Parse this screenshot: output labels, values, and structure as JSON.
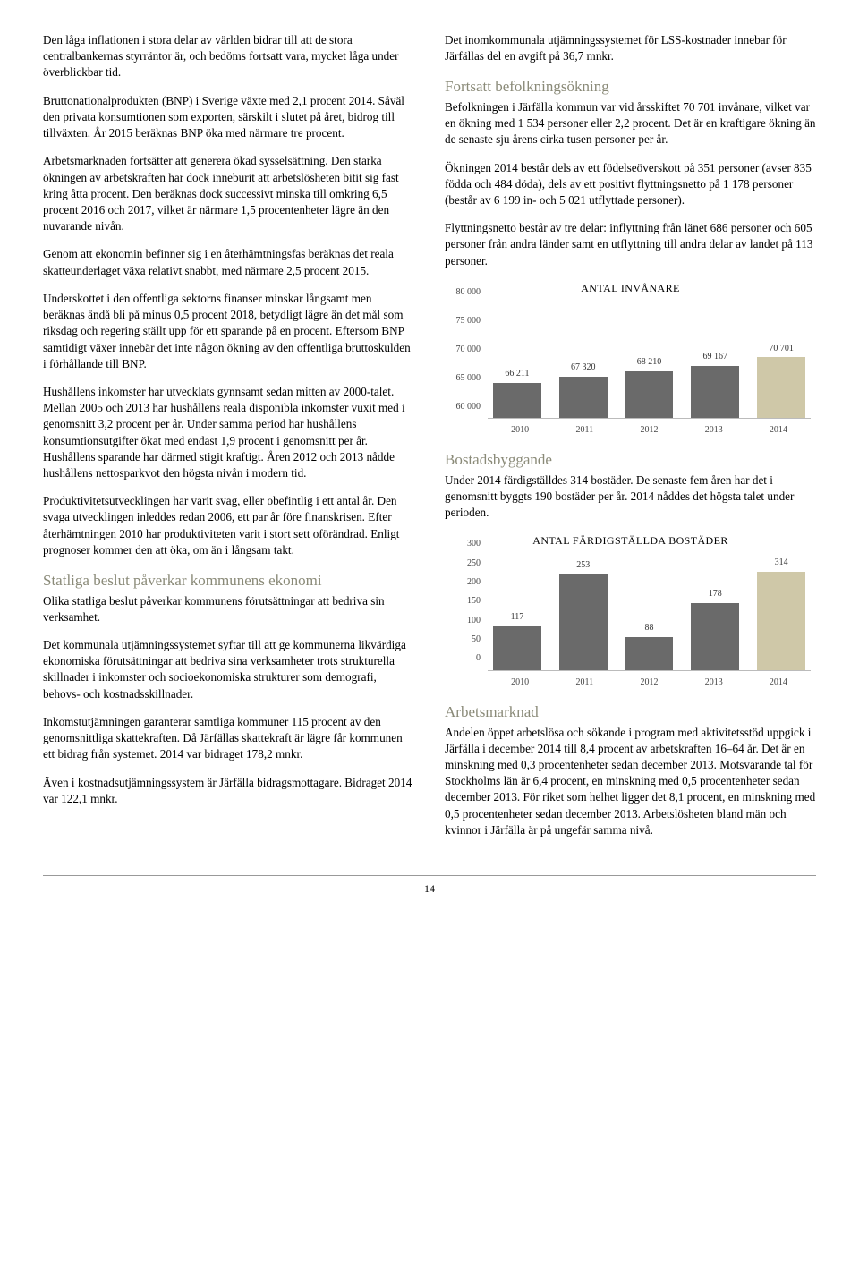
{
  "left": {
    "p1": "Den låga inflationen i stora delar av världen bidrar till att de stora centralbankernas styrräntor är, och bedöms fortsatt vara, mycket låga under överblickbar tid.",
    "p2": "Bruttonationalprodukten (BNP) i Sverige växte med 2,1 procent 2014. Såväl den privata konsumtionen som exporten, särskilt i slutet på året, bidrog till tillväxten. År 2015 beräknas BNP öka med närmare tre procent.",
    "p3": "Arbetsmarknaden fortsätter att generera ökad sysselsättning. Den starka ökningen av arbetskraften har dock inneburit att arbetslösheten bitit sig fast kring åtta procent. Den beräknas dock successivt minska till omkring 6,5 procent 2016 och 2017, vilket är närmare 1,5 procentenheter lägre än den nuvarande nivån.",
    "p4": "Genom att ekonomin befinner sig i en återhämtningsfas beräknas det reala skatteunderlaget växa relativt snabbt, med närmare 2,5 procent 2015.",
    "p5": "Underskottet i den offentliga sektorns finanser minskar långsamt men beräknas ändå bli på minus 0,5 procent 2018, betydligt lägre än det mål som riksdag och regering ställt upp för ett sparande på en procent. Eftersom BNP samtidigt växer innebär det inte någon ökning av den offentliga bruttoskulden i förhållande till BNP.",
    "p6": "Hushållens inkomster har utvecklats gynnsamt sedan mitten av 2000-talet. Mellan 2005 och 2013 har hushållens reala disponibla inkomster vuxit med i genomsnitt 3,2 procent per år. Under samma period har hushållens konsumtionsutgifter ökat med endast 1,9 procent i genomsnitt per år. Hushållens sparande har därmed stigit kraftigt. Åren 2012 och 2013 nådde hushållens nettosparkvot den högsta nivån i modern tid.",
    "p7": "Produktivitetsutvecklingen har varit svag, eller obefintlig i ett antal år. Den svaga utvecklingen inleddes redan 2006, ett par år före finanskrisen. Efter återhämtningen 2010 har produktiviteten varit i stort sett oförändrad. Enligt prognoser kommer den att öka, om än i långsam takt.",
    "h1": "Statliga beslut påverkar kommunens ekonomi",
    "p8": "Olika statliga beslut påverkar kommunens förutsättningar att bedriva sin verksamhet.",
    "p9": "Det kommunala utjämningssystemet syftar till att ge kommunerna likvärdiga ekonomiska förutsättningar att bedriva sina verksamheter trots strukturella skillnader i inkomster och socioekonomiska strukturer som demografi, behovs- och kostnadsskillnader.",
    "p10": "Inkomstutjämningen garanterar samtliga kommuner 115 procent av den genomsnittliga skattekraften. Då Järfällas skattekraft är lägre får kommunen ett bidrag från systemet. 2014 var bidraget 178,2 mnkr.",
    "p11": "Även i kostnadsutjämningssystem är Järfälla bidragsmottagare. Bidraget 2014 var 122,1 mnkr."
  },
  "right": {
    "p1": "Det inomkommunala utjämningssystemet för LSS-kostnader innebar för Järfällas del en avgift på 36,7 mnkr.",
    "h1": "Fortsatt befolkningsökning",
    "p2": "Befolkningen i Järfälla kommun var vid årsskiftet 70 701 invånare, vilket var en ökning med 1 534 personer eller 2,2 procent. Det är en kraftigare ökning än de senaste sju årens cirka tusen personer per år.",
    "p3": "Ökningen 2014 består dels av ett födelseöverskott på 351 personer (avser 835 födda och 484 döda), dels av ett positivt flyttningsnetto på 1 178 personer (består av 6 199 in- och 5 021 utflyttade personer).",
    "p4": "Flyttningsnetto består av tre delar: inflyttning från länet 686 personer och 605 personer från andra länder samt en utflyttning till andra delar av landet på 113 personer.",
    "h2": "Bostadsbyggande",
    "p5": "Under 2014 färdigställdes 314 bostäder. De senaste fem åren har det i genomsnitt byggts 190 bostäder per år. 2014 nåddes det högsta talet under perioden.",
    "h3": "Arbetsmarknad",
    "p6": "Andelen öppet arbetslösa och sökande i program med aktivitetsstöd uppgick i Järfälla i december 2014 till 8,4 procent av arbetskraften 16–64 år. Det är en minskning med 0,3 procentenheter sedan december 2013. Motsvarande tal för Stockholms län är 6,4 procent, en minskning med 0,5 procentenheter sedan december 2013. För riket som helhet ligger det 8,1 procent, en minskning med 0,5 procentenheter sedan december 2013. Arbetslösheten bland män och kvinnor i Järfälla är på ungefär samma nivå."
  },
  "chart1": {
    "title": "ANTAL INVÅNARE",
    "type": "bar",
    "categories": [
      "2010",
      "2011",
      "2012",
      "2013",
      "2014"
    ],
    "values": [
      66211,
      67320,
      68210,
      69167,
      70701
    ],
    "value_labels": [
      "66 211",
      "67 320",
      "68 210",
      "69 167",
      "70 701"
    ],
    "bar_colors": [
      "#6a6a6a",
      "#6a6a6a",
      "#6a6a6a",
      "#6a6a6a",
      "#cfc8a8"
    ],
    "ymin": 60000,
    "ymax": 80000,
    "yticks": [
      60000,
      65000,
      70000,
      75000,
      80000
    ],
    "ytick_labels": [
      "60 000",
      "65 000",
      "70 000",
      "75 000",
      "80 000"
    ],
    "title_fontsize": 12
  },
  "chart2": {
    "title": "ANTAL FÄRDIGSTÄLLDA BOSTÄDER",
    "type": "bar",
    "categories": [
      "2010",
      "2011",
      "2012",
      "2013",
      "2014"
    ],
    "values": [
      117,
      253,
      88,
      178,
      314
    ],
    "value_labels": [
      "117",
      "253",
      "88",
      "178",
      "314"
    ],
    "bar_colors": [
      "#6a6a6a",
      "#6a6a6a",
      "#6a6a6a",
      "#6a6a6a",
      "#cfc8a8"
    ],
    "ymin": 0,
    "ymax": 300,
    "yticks": [
      0,
      50,
      100,
      150,
      200,
      250,
      300
    ],
    "ytick_labels": [
      "0",
      "50",
      "100",
      "150",
      "200",
      "250",
      "300"
    ],
    "title_fontsize": 12
  },
  "page_number": "14"
}
